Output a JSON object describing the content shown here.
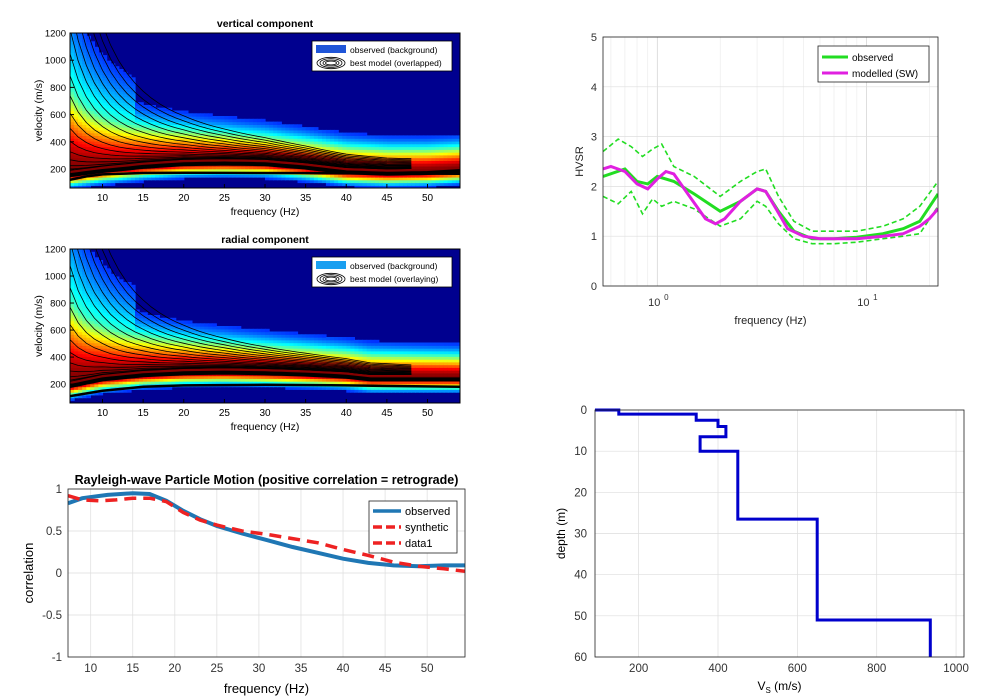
{
  "chart_data": [
    {
      "id": "vertical",
      "type": "heatmap",
      "title": "vertical component",
      "xlabel": "frequency (Hz)",
      "ylabel": "velocity (m/s)",
      "xlim": [
        6,
        54
      ],
      "ylim": [
        60,
        1200
      ],
      "xticks": [
        10,
        15,
        20,
        25,
        30,
        35,
        40,
        45,
        50
      ],
      "yticks": [
        200,
        400,
        600,
        800,
        1000,
        1200
      ],
      "legend": {
        "position": "top-right",
        "entries": [
          "observed (background)",
          "best model (overlapped)"
        ],
        "swatch_color": "#1f55d8"
      },
      "ridge": {
        "x": [
          6,
          10,
          15,
          20,
          25,
          30,
          35,
          40,
          45,
          50,
          54
        ],
        "y": [
          170,
          200,
          230,
          250,
          255,
          250,
          225,
          190,
          180,
          185,
          200
        ]
      },
      "fundamental": {
        "x": [
          6,
          8,
          10,
          15,
          20,
          30,
          40,
          54
        ],
        "y": [
          120,
          145,
          160,
          170,
          172,
          170,
          168,
          165
        ]
      }
    },
    {
      "id": "radial",
      "type": "heatmap",
      "title": "radial component",
      "xlabel": "frequency (Hz)",
      "ylabel": "velocity (m/s)",
      "xlim": [
        6,
        54
      ],
      "ylim": [
        60,
        1200
      ],
      "xticks": [
        10,
        15,
        20,
        25,
        30,
        35,
        40,
        45,
        50
      ],
      "yticks": [
        200,
        400,
        600,
        800,
        1000,
        1200
      ],
      "legend": {
        "position": "top-right",
        "entries": [
          "observed (background)",
          "best model (overlaying)"
        ],
        "swatch_color": "#1a9ff0"
      },
      "ridge": {
        "x": [
          6,
          10,
          15,
          20,
          25,
          30,
          35,
          40,
          43
        ],
        "y": [
          200,
          250,
          280,
          295,
          300,
          295,
          285,
          270,
          250
        ]
      },
      "fundamental": {
        "x": [
          6,
          10,
          15,
          20,
          30,
          40,
          54
        ],
        "y": [
          110,
          150,
          180,
          190,
          195,
          190,
          180
        ]
      }
    },
    {
      "id": "hvsr",
      "type": "line",
      "xscale": "log",
      "xlabel": "frequency (Hz)",
      "ylabel": "HVSR",
      "xlim": [
        0.55,
        22
      ],
      "ylim": [
        0,
        5
      ],
      "yticks": [
        0,
        1,
        2,
        3,
        4,
        5
      ],
      "xtick_labels": [
        {
          "base": "10",
          "exp": "0",
          "value": 1
        },
        {
          "base": "10",
          "exp": "1",
          "value": 10
        }
      ],
      "legend": {
        "position": "top-right"
      },
      "series": [
        {
          "name": "observed",
          "color": "#22dd22",
          "x": [
            0.55,
            0.7,
            0.8,
            0.9,
            1.0,
            1.2,
            1.5,
            2.0,
            2.5,
            3.0,
            3.3,
            3.8,
            4.5,
            5.5,
            7,
            9,
            12,
            15,
            18,
            22
          ],
          "y": [
            2.2,
            2.35,
            2.1,
            2.05,
            2.2,
            2.1,
            1.85,
            1.5,
            1.7,
            1.95,
            1.9,
            1.5,
            1.1,
            0.95,
            0.95,
            0.98,
            1.05,
            1.15,
            1.3,
            1.85
          ]
        },
        {
          "name": "",
          "color": "#22dd22",
          "dashed": true,
          "x": [
            0.55,
            0.65,
            0.75,
            0.85,
            0.95,
            1.05,
            1.2,
            1.5,
            2.0,
            2.5,
            3.0,
            3.3,
            3.8,
            4.5,
            5.5,
            7,
            9,
            12,
            15,
            18,
            22
          ],
          "y": [
            2.7,
            2.95,
            2.8,
            2.6,
            2.75,
            2.85,
            2.4,
            2.2,
            1.8,
            2.1,
            2.3,
            2.35,
            1.8,
            1.3,
            1.1,
            1.1,
            1.1,
            1.2,
            1.35,
            1.6,
            2.1
          ]
        },
        {
          "name": "",
          "color": "#22dd22",
          "dashed": true,
          "x": [
            0.55,
            0.65,
            0.75,
            0.85,
            0.95,
            1.05,
            1.2,
            1.5,
            2.0,
            2.5,
            3.0,
            3.3,
            3.8,
            4.5,
            5.5,
            7,
            9,
            12,
            15,
            18,
            22
          ],
          "y": [
            1.8,
            1.65,
            1.9,
            1.45,
            1.75,
            1.6,
            1.7,
            1.55,
            1.2,
            1.35,
            1.7,
            1.6,
            1.25,
            0.95,
            0.85,
            0.85,
            0.88,
            0.95,
            1.0,
            1.05,
            1.6
          ]
        },
        {
          "name": "modelled (SW)",
          "color": "#e020e0",
          "x": [
            0.55,
            0.6,
            0.7,
            0.8,
            0.9,
            1.0,
            1.1,
            1.2,
            1.4,
            1.7,
            1.9,
            2.1,
            2.5,
            3.0,
            3.3,
            3.7,
            4.2,
            5.0,
            6.0,
            7.5,
            9,
            12,
            15,
            18,
            20,
            22
          ],
          "y": [
            2.35,
            2.4,
            2.3,
            2.05,
            1.95,
            2.15,
            2.3,
            2.25,
            1.85,
            1.35,
            1.25,
            1.35,
            1.7,
            1.95,
            1.9,
            1.55,
            1.15,
            1.0,
            0.95,
            0.95,
            0.95,
            1.0,
            1.05,
            1.2,
            1.35,
            1.55
          ]
        }
      ]
    },
    {
      "id": "particle",
      "type": "line",
      "title": "Rayleigh-wave Particle Motion (positive correlation = retrograde)",
      "xlabel": "frequency (Hz)",
      "ylabel": "correlation",
      "xlim": [
        7.3,
        54.5
      ],
      "ylim": [
        -1,
        1
      ],
      "xticks": [
        10,
        15,
        20,
        25,
        30,
        35,
        40,
        45,
        50
      ],
      "yticks": [
        -1,
        -0.5,
        0,
        0.5,
        1
      ],
      "legend": {
        "position": "top-right"
      },
      "series": [
        {
          "name": "observed",
          "color": "#1f77b4",
          "x": [
            7.3,
            9,
            12,
            15,
            17,
            19,
            21,
            23,
            25,
            28,
            31,
            34,
            37,
            40,
            43,
            46,
            49,
            52,
            54.5
          ],
          "y": [
            0.83,
            0.89,
            0.93,
            0.95,
            0.94,
            0.86,
            0.74,
            0.64,
            0.56,
            0.47,
            0.39,
            0.31,
            0.24,
            0.17,
            0.12,
            0.09,
            0.08,
            0.09,
            0.09
          ]
        },
        {
          "name": "synthetic",
          "color": "#ee2222",
          "dashed": true,
          "x": [
            7.3,
            9,
            11,
            13,
            15,
            17,
            19,
            21,
            23,
            25,
            28,
            31,
            34,
            37,
            40,
            43,
            46,
            49,
            52,
            54.5
          ],
          "y": [
            0.92,
            0.87,
            0.86,
            0.87,
            0.89,
            0.89,
            0.85,
            0.72,
            0.63,
            0.57,
            0.5,
            0.46,
            0.41,
            0.36,
            0.28,
            0.21,
            0.13,
            0.08,
            0.05,
            0.02
          ]
        },
        {
          "name": "data1",
          "color": "#ee2222",
          "dashed": true,
          "x": [],
          "y": []
        }
      ]
    },
    {
      "id": "profile",
      "type": "line",
      "xlabel_main": "V",
      "xlabel_sub": "S",
      "xlabel_unit": " (m/s)",
      "ylabel": "depth (m)",
      "xlim": [
        90,
        1020
      ],
      "ylim": [
        0,
        60
      ],
      "y_reversed": true,
      "xticks": [
        200,
        400,
        600,
        800,
        1000
      ],
      "yticks": [
        0,
        10,
        20,
        30,
        40,
        50,
        60
      ],
      "series": [
        {
          "name": "",
          "color": "#0000cc",
          "x": [
            90,
            150,
            150,
            345,
            345,
            400,
            400,
            420,
            420,
            355,
            355,
            450,
            450,
            650,
            650,
            935,
            935
          ],
          "y": [
            0,
            0,
            1,
            1,
            2.5,
            2.5,
            4,
            4,
            6.5,
            6.5,
            10,
            10,
            26.5,
            26.5,
            51,
            51,
            60
          ]
        }
      ]
    }
  ]
}
